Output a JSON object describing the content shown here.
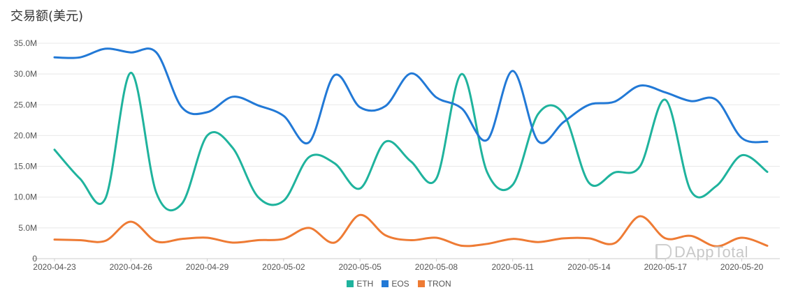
{
  "chart_data": {
    "type": "line",
    "title": "交易额(美元)",
    "x": [
      "2020-04-23",
      "2020-04-24",
      "2020-04-25",
      "2020-04-26",
      "2020-04-27",
      "2020-04-28",
      "2020-04-29",
      "2020-04-30",
      "2020-05-01",
      "2020-05-02",
      "2020-05-03",
      "2020-05-04",
      "2020-05-05",
      "2020-05-06",
      "2020-05-07",
      "2020-05-08",
      "2020-05-09",
      "2020-05-10",
      "2020-05-11",
      "2020-05-12",
      "2020-05-13",
      "2020-05-14",
      "2020-05-15",
      "2020-05-16",
      "2020-05-17",
      "2020-05-18",
      "2020-05-19",
      "2020-05-20",
      "2020-05-21"
    ],
    "x_tick_labels": [
      "2020-04-23",
      "2020-04-26",
      "2020-04-29",
      "2020-05-02",
      "2020-05-05",
      "2020-05-08",
      "2020-05-11",
      "2020-05-14",
      "2020-05-17",
      "2020-05-20"
    ],
    "y_tick_labels": [
      "0",
      "5.0M",
      "10.0M",
      "15.0M",
      "20.0M",
      "25.0M",
      "30.0M",
      "35.0M"
    ],
    "ylim": [
      0,
      35
    ],
    "y_unit": "M",
    "grid": true,
    "legend_position": "bottom-center",
    "series": [
      {
        "name": "ETH",
        "color": "#1fb39d",
        "values": [
          17.7,
          13.0,
          9.8,
          30.2,
          10.7,
          8.9,
          20.0,
          18.0,
          10.0,
          9.4,
          16.5,
          15.5,
          11.4,
          19.0,
          15.8,
          13.0,
          30.0,
          14.0,
          12.0,
          23.5,
          23.5,
          12.3,
          14.0,
          15.0,
          25.8,
          11.0,
          11.8,
          16.8,
          14.1
        ]
      },
      {
        "name": "EOS",
        "color": "#2279d6",
        "values": [
          32.7,
          32.7,
          34.1,
          33.5,
          33.5,
          24.6,
          23.8,
          26.3,
          24.9,
          23.2,
          18.9,
          29.8,
          24.6,
          24.8,
          30.1,
          26.2,
          24.4,
          19.3,
          30.5,
          19.1,
          22.2,
          25.0,
          25.5,
          28.1,
          27.0,
          25.6,
          25.8,
          19.6,
          19.0
        ]
      },
      {
        "name": "TRON",
        "color": "#ee7b34",
        "values": [
          3.1,
          3.0,
          2.9,
          6.0,
          2.8,
          3.2,
          3.4,
          2.6,
          3.0,
          3.2,
          5.0,
          2.6,
          7.1,
          3.8,
          3.0,
          3.4,
          2.1,
          2.4,
          3.2,
          2.7,
          3.3,
          3.3,
          2.5,
          6.9,
          3.3,
          3.7,
          2.0,
          3.4,
          2.1
        ]
      }
    ]
  },
  "watermark": "DAppTotal"
}
